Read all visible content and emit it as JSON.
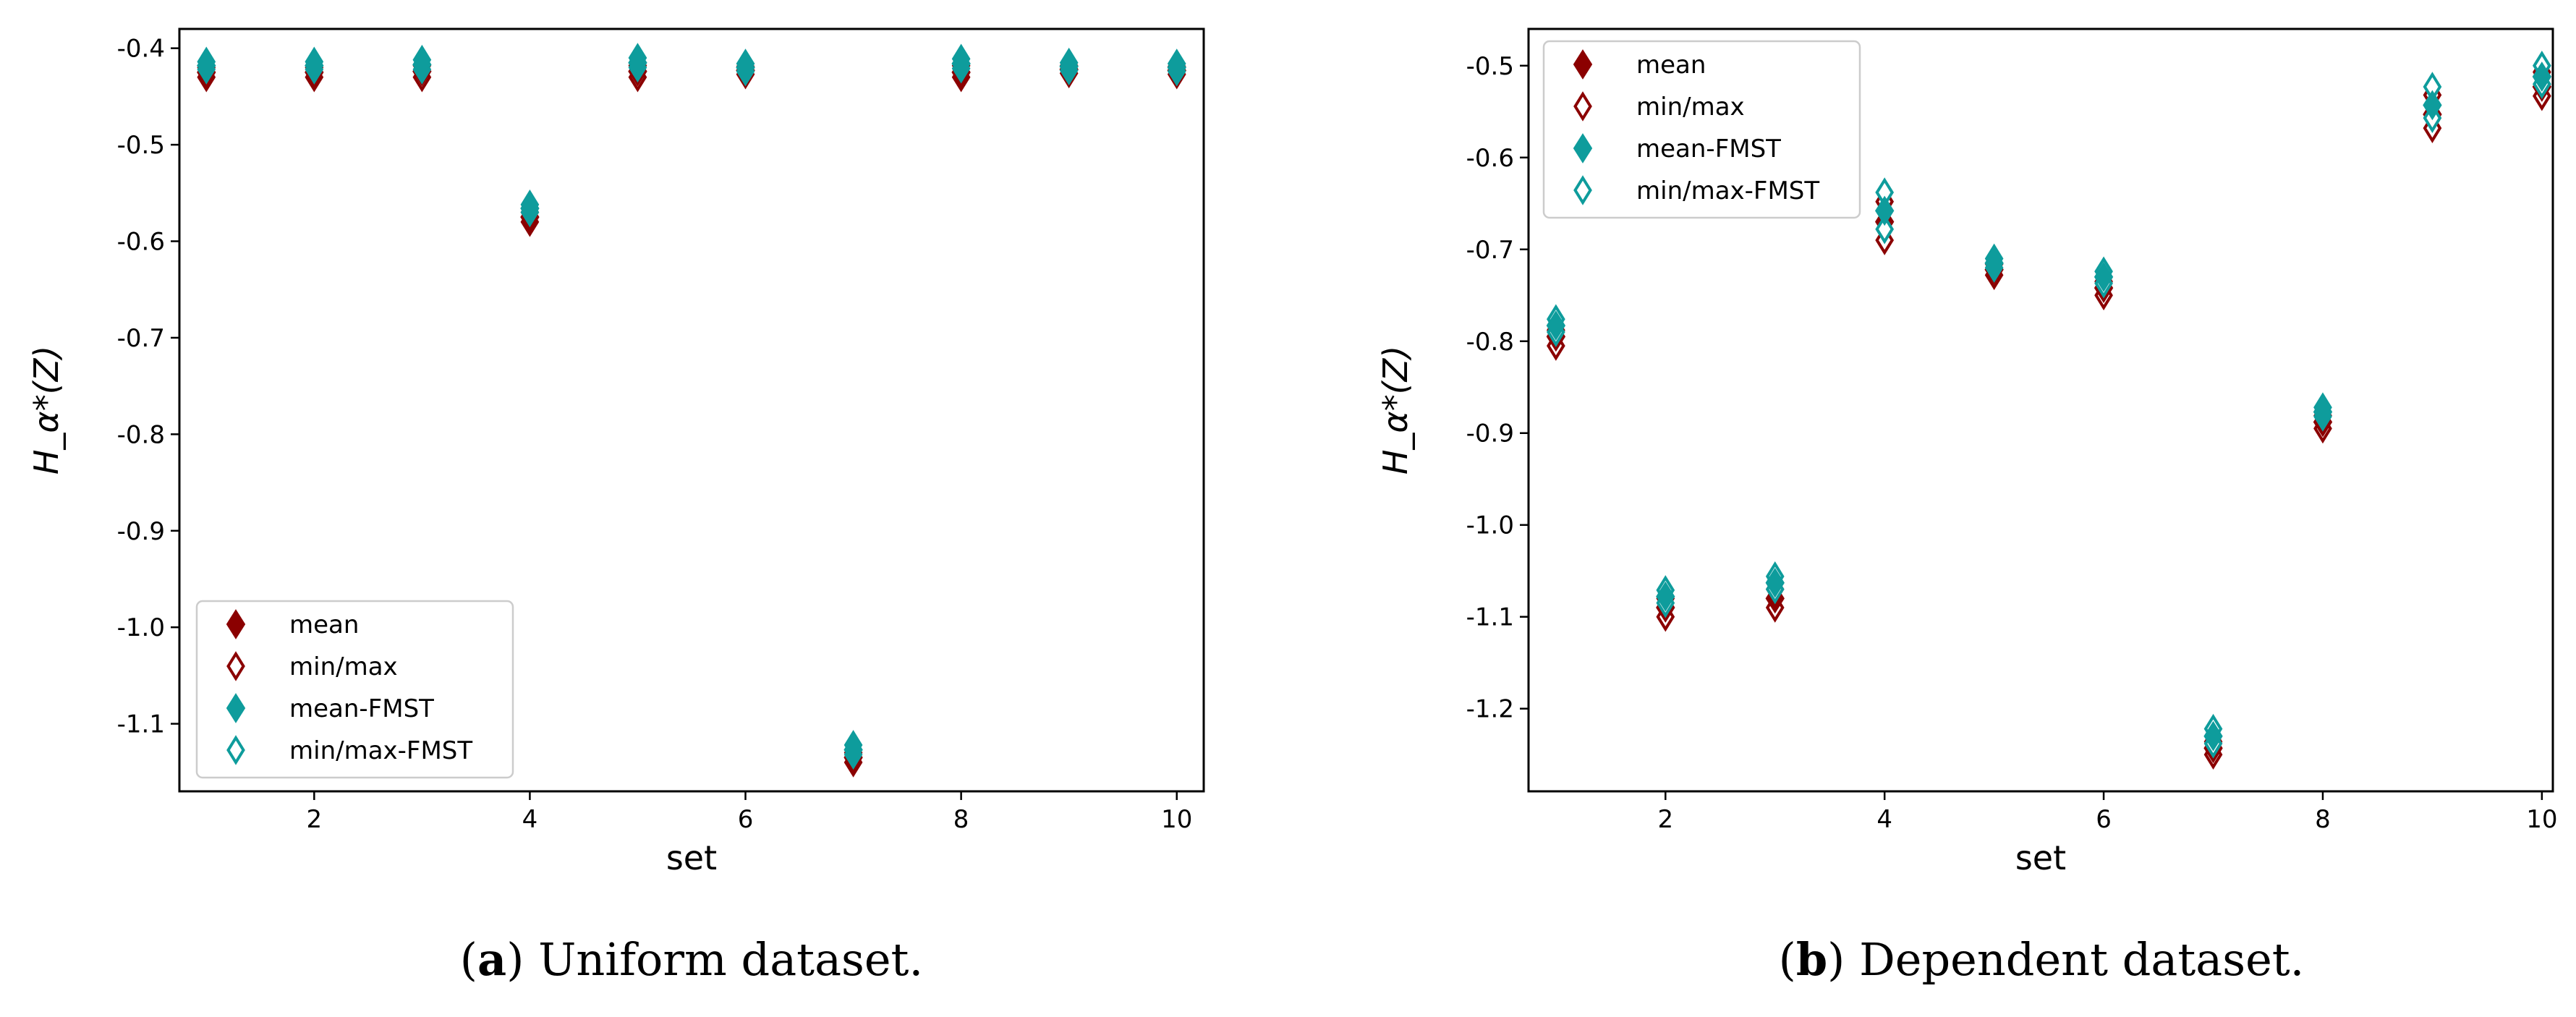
{
  "colors": {
    "mean": "#8b0000",
    "fmst": "#0e9c9c"
  },
  "chart_data": [
    {
      "id": "a",
      "type": "scatter",
      "caption_letter": "a",
      "caption_text": "Uniform dataset.",
      "xlabel": "set",
      "ylabel": "H_α*(Z)",
      "xlim": [
        0.75,
        10.25
      ],
      "ylim": [
        -1.17,
        -0.38
      ],
      "xticks": [
        2,
        4,
        6,
        8,
        10
      ],
      "yticks": [
        -0.4,
        -0.5,
        -0.6,
        -0.7,
        -0.8,
        -0.9,
        -1.0,
        -1.1
      ],
      "ytick_labels": [
        "-0.4",
        "-0.5",
        "-0.6",
        "-0.7",
        "-0.8",
        "-0.9",
        "-1.0",
        "-1.1"
      ],
      "legend_position": "lower-left",
      "legend": [
        "mean",
        "min/max",
        "mean-FMST",
        "min/max-FMST"
      ],
      "x": [
        1,
        2,
        3,
        4,
        5,
        6,
        7,
        8,
        9,
        10
      ],
      "series": [
        {
          "name": "mean",
          "values": [
            -0.425,
            -0.425,
            -0.424,
            -0.575,
            -0.424,
            -0.423,
            -1.135,
            -0.425,
            -0.422,
            -0.423
          ]
        },
        {
          "name": "min/max",
          "min": [
            -0.43,
            -0.43,
            -0.43,
            -0.58,
            -0.43,
            -0.427,
            -1.14,
            -0.43,
            -0.426,
            -0.427
          ],
          "max": [
            -0.42,
            -0.42,
            -0.418,
            -0.57,
            -0.418,
            -0.419,
            -1.13,
            -0.418,
            -0.418,
            -0.419
          ]
        },
        {
          "name": "mean-FMST",
          "values": [
            -0.418,
            -0.418,
            -0.417,
            -0.566,
            -0.415,
            -0.42,
            -1.127,
            -0.416,
            -0.419,
            -0.42
          ]
        },
        {
          "name": "min/max-FMST",
          "min": [
            -0.422,
            -0.422,
            -0.422,
            -0.57,
            -0.42,
            -0.424,
            -1.132,
            -0.421,
            -0.423,
            -0.424
          ],
          "max": [
            -0.414,
            -0.414,
            -0.412,
            -0.562,
            -0.41,
            -0.416,
            -1.122,
            -0.411,
            -0.415,
            -0.416
          ]
        }
      ]
    },
    {
      "id": "b",
      "type": "scatter",
      "caption_letter": "b",
      "caption_text": "Dependent dataset.",
      "xlabel": "set",
      "ylabel": "H_α*(Z)",
      "xlim": [
        0.75,
        10.1
      ],
      "ylim": [
        -1.29,
        -0.46
      ],
      "xticks": [
        2,
        4,
        6,
        8,
        10
      ],
      "yticks": [
        -0.5,
        -0.6,
        -0.7,
        -0.8,
        -0.9,
        -1.0,
        -1.1,
        -1.2
      ],
      "ytick_labels": [
        "-0.5",
        "-0.6",
        "-0.7",
        "-0.8",
        "-0.9",
        "-1.0",
        "-1.1",
        "-1.2"
      ],
      "legend_position": "top-left",
      "legend": [
        "mean",
        "min/max",
        "mean-FMST",
        "min/max-FMST"
      ],
      "x": [
        1,
        2,
        3,
        4,
        5,
        6,
        7,
        8,
        9,
        10
      ],
      "series": [
        {
          "name": "mean",
          "values": [
            -0.795,
            -1.09,
            -1.08,
            -0.67,
            -0.722,
            -0.742,
            -1.243,
            -0.888,
            -0.553,
            -0.523
          ]
        },
        {
          "name": "min/max",
          "min": [
            -0.805,
            -1.1,
            -1.09,
            -0.69,
            -0.728,
            -0.75,
            -1.25,
            -0.895,
            -0.568,
            -0.533
          ],
          "max": [
            -0.788,
            -1.08,
            -1.07,
            -0.648,
            -0.716,
            -0.735,
            -1.236,
            -0.881,
            -0.532,
            -0.507
          ]
        },
        {
          "name": "mean-FMST",
          "values": [
            -0.783,
            -1.078,
            -1.063,
            -0.658,
            -0.715,
            -0.73,
            -1.23,
            -0.877,
            -0.543,
            -0.512
          ]
        },
        {
          "name": "min/max-FMST",
          "min": [
            -0.79,
            -1.085,
            -1.07,
            -0.678,
            -0.72,
            -0.737,
            -1.238,
            -0.882,
            -0.557,
            -0.52
          ],
          "max": [
            -0.776,
            -1.071,
            -1.056,
            -0.638,
            -0.71,
            -0.724,
            -1.222,
            -0.872,
            -0.523,
            -0.5
          ]
        }
      ]
    }
  ]
}
